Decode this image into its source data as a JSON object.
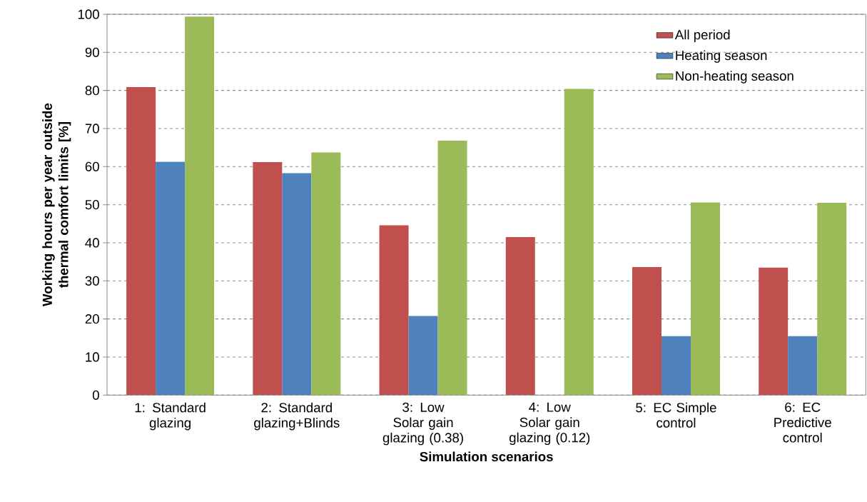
{
  "chart_data": {
    "type": "bar",
    "xlabel": "Simulation scenarios",
    "ylabel": "Working hours per year outside thermal comfort limits [%]",
    "categories": [
      "1: Standard glazing",
      "2: Standard glazing+Blinds",
      "3: Low Solar gain glazing (0.38)",
      "4: Low Solar gain glazing (0.12)",
      "5: EC Simple control",
      "6: EC Predictive control"
    ],
    "series": [
      {
        "name": "All period",
        "color": "#c0504d",
        "values": [
          80.9,
          61.2,
          44.6,
          41.5,
          33.6,
          33.5
        ]
      },
      {
        "name": "Heating season",
        "color": "#4f81bd",
        "values": [
          61.3,
          58.3,
          20.8,
          0,
          15.5,
          15.5
        ]
      },
      {
        "name": "Non-heating season",
        "color": "#9bbb59",
        "values": [
          99.4,
          63.7,
          66.8,
          80.4,
          50.6,
          50.5
        ]
      }
    ],
    "ylim": [
      0,
      100
    ],
    "yticks": [
      0,
      10,
      20,
      30,
      40,
      50,
      60,
      70,
      80,
      90,
      100
    ],
    "grid": "y",
    "legend": "top right"
  }
}
